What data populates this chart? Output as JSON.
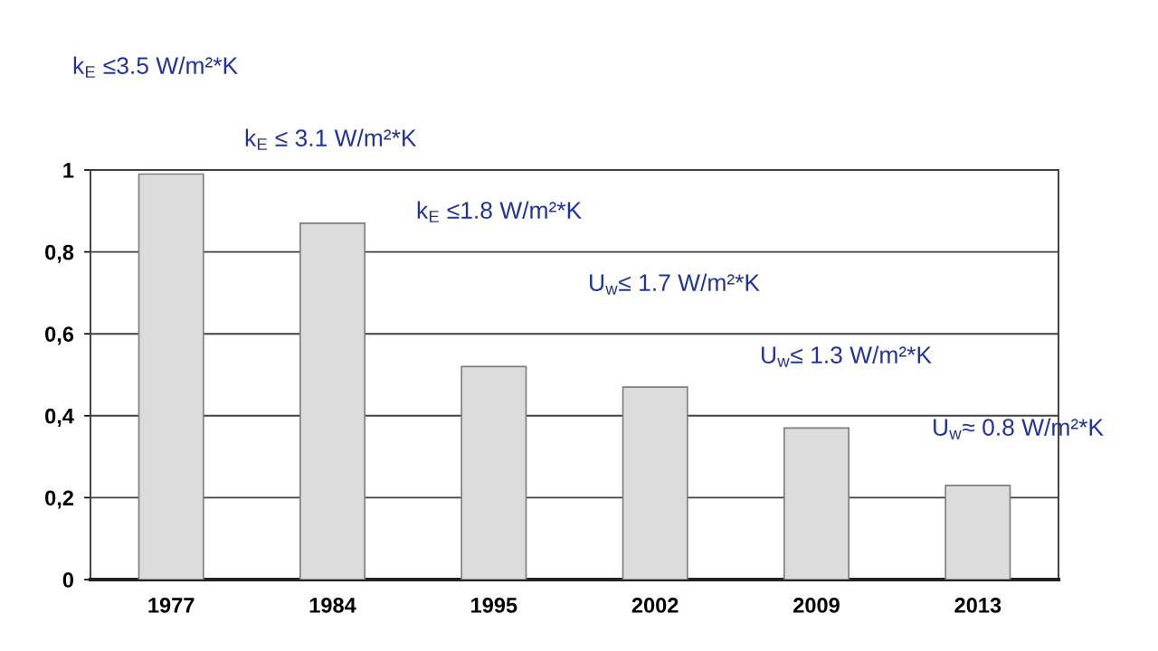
{
  "chart_data": {
    "type": "bar",
    "categories": [
      "1977",
      "1984",
      "1995",
      "2002",
      "2009",
      "2013"
    ],
    "values": [
      0.99,
      0.87,
      0.52,
      0.47,
      0.37,
      0.23
    ],
    "color": "#dcdcdc",
    "ylim": [
      0,
      1
    ],
    "yticks": [
      0,
      {
        "value": 0.2,
        "label": "0,2"
      },
      {
        "value": 0.4,
        "label": "0,4"
      },
      {
        "value": 0.6,
        "label": "0,6"
      },
      {
        "value": 0.8,
        "label": "0,8"
      },
      1
    ],
    "grid": "y",
    "annotations": [
      "k$_{E}$ ≤3.5 W/m²*K",
      "k$_{E}$ ≤ 3.1 W/m²*K",
      "k$_{E}$ ≤1.8 W/m²*K",
      "U$_{w}$≤ 1.7 W/m²*K",
      "U$_{w}$≤ 1.3 W/m²*K",
      "U$_{w}$≈ 0.8 W/m²*K"
    ]
  }
}
